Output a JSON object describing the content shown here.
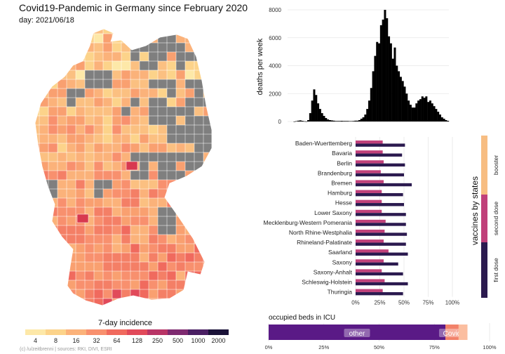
{
  "title": "Covid19-Pandemic in Germany since February 2020",
  "day_label": "day: 2021/06/18",
  "credit": "(c) /u/zeitbrenni | sources: RKI, DIVI, ESRI",
  "map_legend": {
    "title": "7-day incidence",
    "ticks": [
      "4",
      "8",
      "16",
      "32",
      "64",
      "128",
      "250",
      "500",
      "1000",
      "2000"
    ],
    "colors": [
      "#fde8a8",
      "#fcd38a",
      "#fbb27a",
      "#f8906e",
      "#f06a5e",
      "#e14a5a",
      "#b83566",
      "#7e2a70",
      "#4a1f63",
      "#1a1238"
    ]
  },
  "chart_data": [
    {
      "type": "bar",
      "ylabel": "deaths per week",
      "ylim": [
        0,
        8000
      ],
      "yticks": [
        0,
        2000,
        4000,
        6000,
        8000
      ],
      "values": [
        0,
        0,
        0,
        5,
        30,
        60,
        80,
        50,
        20,
        10,
        100,
        600,
        1500,
        2300,
        1900,
        1300,
        900,
        600,
        400,
        250,
        150,
        100,
        80,
        60,
        40,
        40,
        40,
        50,
        40,
        40,
        40,
        30,
        30,
        40,
        60,
        60,
        100,
        200,
        300,
        500,
        900,
        1500,
        2400,
        3600,
        4700,
        5700,
        5600,
        6900,
        7300,
        8000,
        7400,
        6100,
        5600,
        4500,
        5300,
        4000,
        3600,
        3200,
        2900,
        2500,
        2000,
        1500,
        1200,
        1000,
        1000,
        1300,
        1500,
        1600,
        1800,
        1700,
        1800,
        1400,
        1500,
        1300,
        1100,
        900,
        700,
        500,
        300,
        200,
        100,
        50
      ],
      "bar_color": "#000000"
    },
    {
      "type": "bar",
      "orientation": "horizontal",
      "xlim": [
        0,
        1
      ],
      "xticks": [
        "0%",
        "25%",
        "50%",
        "75%",
        "100%"
      ],
      "categories": [
        "Baden-Wuerttemberg",
        "Bavaria",
        "Berlin",
        "Brandenburg",
        "Bremen",
        "Hamburg",
        "Hesse",
        "Lower Saxony",
        "Mecklenburg-Western Pomerania",
        "North Rhine-Westphalia",
        "Rhineland-Palatinate",
        "Saarland",
        "Saxony",
        "Saxony-Anhalt",
        "Schleswig-Holstein",
        "Thuringia"
      ],
      "series": [
        {
          "name": "first dose",
          "color": "#2b1a4f",
          "values": [
            0.51,
            0.48,
            0.51,
            0.5,
            0.58,
            0.49,
            0.5,
            0.52,
            0.52,
            0.53,
            0.52,
            0.54,
            0.44,
            0.49,
            0.54,
            0.49
          ]
        },
        {
          "name": "second dose",
          "color": "#c0407a",
          "values": [
            0.28,
            0.28,
            0.29,
            0.26,
            0.29,
            0.27,
            0.27,
            0.27,
            0.31,
            0.3,
            0.29,
            0.34,
            0.29,
            0.27,
            0.3,
            0.28
          ]
        },
        {
          "name": "booster",
          "color": "#f7bd82",
          "values": [
            0,
            0,
            0,
            0,
            0,
            0,
            0,
            0,
            0,
            0,
            0,
            0,
            0,
            0,
            0,
            0
          ]
        }
      ],
      "legend_title": "vaccines by states",
      "legend": [
        "booster",
        "second dose",
        "first dose"
      ]
    },
    {
      "type": "bar",
      "orientation": "horizontal",
      "stacked": true,
      "title": "occupied beds in ICU",
      "xticks": [
        "0%",
        "25%",
        "50%",
        "75%",
        "100%"
      ],
      "segments": [
        {
          "label": "other",
          "value": 0.8,
          "color": "#5a1a86"
        },
        {
          "label": "Covid",
          "value": 0.06,
          "color": "#f2826a"
        },
        {
          "label": "",
          "value": 0.04,
          "color": "#fbbea0"
        }
      ]
    }
  ]
}
